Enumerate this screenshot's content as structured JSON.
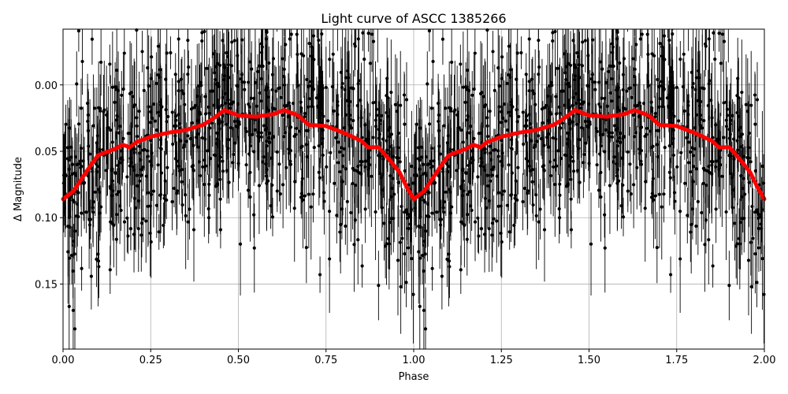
{
  "chart_data": {
    "type": "scatter",
    "title": "Light curve of ASCC 1385266",
    "xlabel": "Phase",
    "ylabel": "Δ Magnitude",
    "xlim": [
      0.0,
      2.0
    ],
    "ylim": [
      0.199,
      -0.042
    ],
    "y_inverted": true,
    "grid": true,
    "x_ticks": [
      0.0,
      0.25,
      0.5,
      0.75,
      1.0,
      1.25,
      1.5,
      1.75,
      2.0
    ],
    "x_tick_labels": [
      "0.00",
      "0.25",
      "0.50",
      "0.75",
      "1.00",
      "1.25",
      "1.50",
      "1.75",
      "2.00"
    ],
    "y_ticks": [
      0.0,
      0.05,
      0.1,
      0.15
    ],
    "y_tick_labels": [
      "0.00",
      "0.05",
      "0.10",
      "0.15"
    ],
    "series": [
      {
        "kind": "errorbar-points",
        "color": "#000000",
        "note": "dense cloud of individual measurements with vertical error bars, phase-folded and repeated over 0–2"
      },
      {
        "kind": "binned-curve",
        "color": "#ff0000",
        "phase": [
          0.0,
          0.03,
          0.06,
          0.08,
          0.1,
          0.15,
          0.17,
          0.19,
          0.21,
          0.25,
          0.3,
          0.35,
          0.4,
          0.43,
          0.46,
          0.5,
          0.55,
          0.6,
          0.63,
          0.67,
          0.7,
          0.75,
          0.8,
          0.85,
          0.87,
          0.9,
          0.93,
          0.96,
          0.98,
          1.0
        ],
        "mag": [
          0.086,
          0.08,
          0.068,
          0.06,
          0.053,
          0.048,
          0.045,
          0.047,
          0.043,
          0.039,
          0.036,
          0.034,
          0.03,
          0.025,
          0.019,
          0.023,
          0.024,
          0.022,
          0.019,
          0.023,
          0.03,
          0.031,
          0.036,
          0.042,
          0.047,
          0.047,
          0.056,
          0.066,
          0.077,
          0.086
        ]
      }
    ]
  }
}
